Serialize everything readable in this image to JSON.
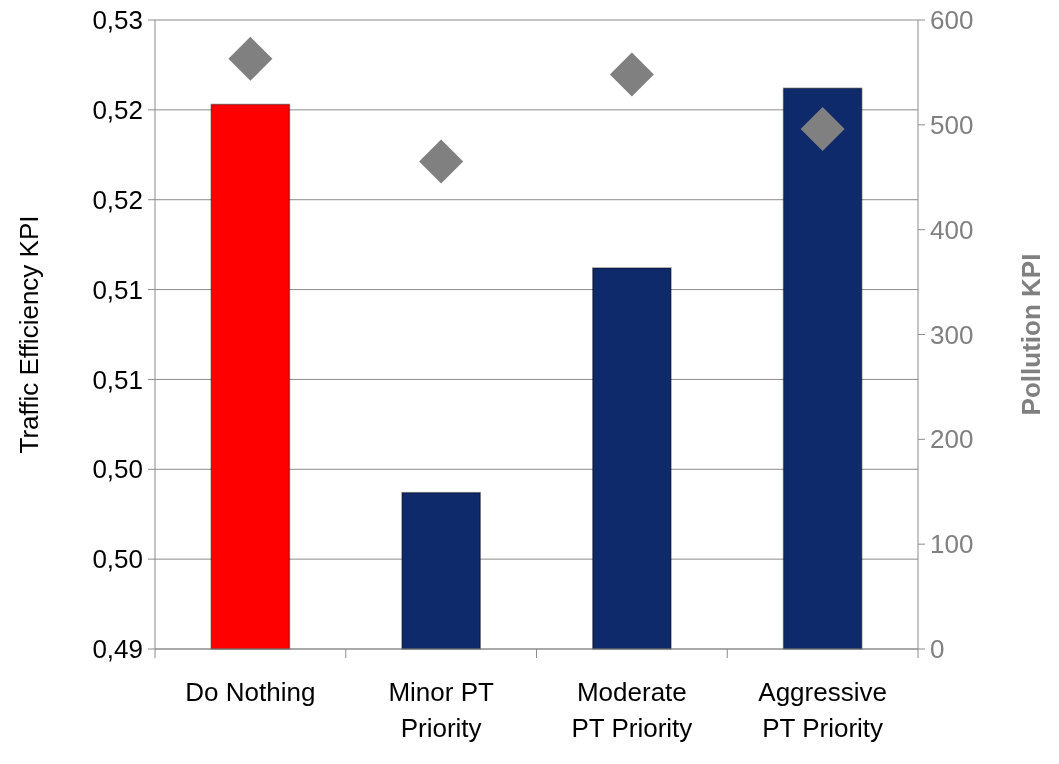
{
  "chart_data": {
    "type": "bar",
    "categories": [
      "Do Nothing",
      "Minor PT Priority",
      "Moderate PT Priority",
      "Aggressive PT Priority"
    ],
    "series": [
      {
        "colors": [
          "#ff0000",
          "#0f2a6b",
          "#0f2a6b",
          "#0f2a6b"
        ],
        "values": [
          0.5203,
          0.4987,
          0.5112,
          0.5212
        ]
      },
      {
        "type": "scatter",
        "axis": "y2",
        "color": "#808080",
        "marker": "diamond",
        "values": [
          563,
          465,
          548,
          496
        ]
      }
    ],
    "ylabel": "Traffic Efficiency KPI",
    "y2label": "Pollution KPI",
    "ylim": [
      0.49,
      0.525
    ],
    "yticks": [
      {
        "value": 0.49,
        "label": "0,49"
      },
      {
        "value": 0.495,
        "label": "0,50"
      },
      {
        "value": 0.5,
        "label": "0,50"
      },
      {
        "value": 0.505,
        "label": "0,51"
      },
      {
        "value": 0.51,
        "label": "0,51"
      },
      {
        "value": 0.515,
        "label": "0,52"
      },
      {
        "value": 0.52,
        "label": "0,52"
      },
      {
        "value": 0.525,
        "label": "0,53"
      }
    ],
    "y2lim": [
      0,
      600
    ],
    "y2ticks": [
      0,
      100,
      200,
      300,
      400,
      500,
      600
    ],
    "grid": "y"
  }
}
